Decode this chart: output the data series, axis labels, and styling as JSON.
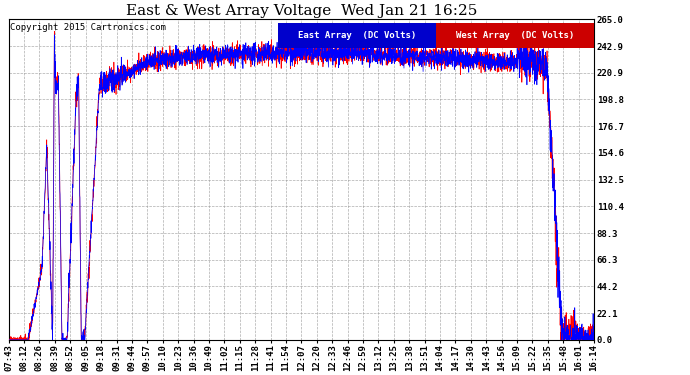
{
  "title": "East & West Array Voltage  Wed Jan 21 16:25",
  "copyright": "Copyright 2015 Cartronics.com",
  "legend_east": "East Array  (DC Volts)",
  "legend_west": "West Array  (DC Volts)",
  "east_color": "#0000ff",
  "west_color": "#ff0000",
  "legend_east_bg": "#0000cc",
  "legend_west_bg": "#cc0000",
  "background_color": "#ffffff",
  "plot_bg_color": "#ffffff",
  "grid_color": "#999999",
  "ylim": [
    0.0,
    265.0
  ],
  "yticks": [
    0.0,
    22.1,
    44.2,
    66.3,
    88.3,
    110.4,
    132.5,
    154.6,
    176.7,
    198.8,
    220.9,
    242.9,
    265.0
  ],
  "xtick_labels": [
    "07:43",
    "08:12",
    "08:26",
    "08:39",
    "08:52",
    "09:05",
    "09:18",
    "09:31",
    "09:44",
    "09:57",
    "10:10",
    "10:23",
    "10:36",
    "10:49",
    "11:02",
    "11:15",
    "11:28",
    "11:41",
    "11:54",
    "12:07",
    "12:20",
    "12:33",
    "12:46",
    "12:59",
    "13:12",
    "13:25",
    "13:38",
    "13:51",
    "14:04",
    "14:17",
    "14:30",
    "14:43",
    "14:56",
    "15:09",
    "15:22",
    "15:35",
    "15:48",
    "16:01",
    "16:14"
  ],
  "title_fontsize": 11,
  "axis_fontsize": 6.5,
  "copyright_fontsize": 6.5,
  "legend_fontsize": 6.5
}
